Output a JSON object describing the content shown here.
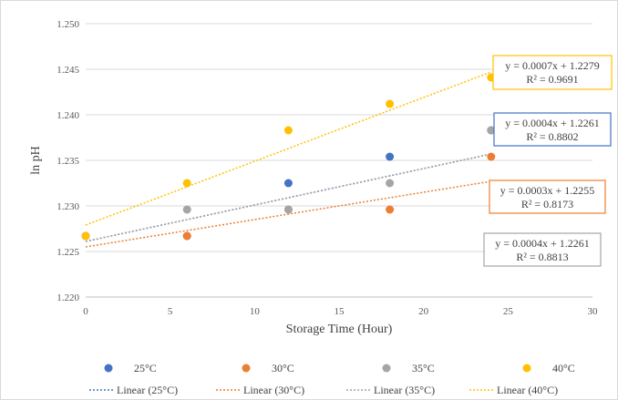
{
  "chart_data": {
    "type": "scatter",
    "xlabel": "Storage Time (Hour)",
    "ylabel": "ln pH",
    "xlim": [
      0,
      30
    ],
    "ylim": [
      1.22,
      1.25
    ],
    "x_ticks": [
      "0",
      "5",
      "10",
      "15",
      "20",
      "25",
      "30"
    ],
    "y_ticks": [
      "1.220",
      "1.225",
      "1.230",
      "1.235",
      "1.240",
      "1.245",
      "1.250"
    ],
    "grid": "horizontal",
    "legend_position": "bottom",
    "series": [
      {
        "name": "25°C",
        "color": "#4472C4",
        "points": [
          [
            0,
            1.2267
          ],
          [
            6,
            1.2267
          ],
          [
            12,
            1.2325
          ],
          [
            18,
            1.2354
          ],
          [
            24,
            1.2383
          ]
        ]
      },
      {
        "name": "30°C",
        "color": "#ED7D31",
        "points": [
          [
            0,
            1.2267
          ],
          [
            6,
            1.2267
          ],
          [
            12,
            1.2296
          ],
          [
            18,
            1.2296
          ],
          [
            24,
            1.2354
          ]
        ]
      },
      {
        "name": "35°C",
        "color": "#A5A5A5",
        "points": [
          [
            0,
            1.2267
          ],
          [
            6,
            1.2296
          ],
          [
            12,
            1.2296
          ],
          [
            18,
            1.2325
          ],
          [
            24,
            1.2383
          ]
        ]
      },
      {
        "name": "40°C",
        "color": "#FFC000",
        "points": [
          [
            0,
            1.2267
          ],
          [
            6,
            1.2325
          ],
          [
            12,
            1.2383
          ],
          [
            18,
            1.2412
          ],
          [
            24,
            1.2441
          ]
        ]
      }
    ],
    "trendlines": [
      {
        "name": "Linear (25°C)",
        "color": "#4472C4",
        "slope": 0.0004,
        "intercept": 1.2261,
        "equation": "y = 0.0004x + 1.2261",
        "r2": "R² = 0.8813"
      },
      {
        "name": "Linear (30°C)",
        "color": "#ED7D31",
        "slope": 0.0003,
        "intercept": 1.2255,
        "equation": "y = 0.0003x + 1.2255",
        "r2": "R² = 0.8173"
      },
      {
        "name": "Linear (35°C)",
        "color": "#A5A5A5",
        "slope": 0.0004,
        "intercept": 1.2261,
        "equation": "y = 0.0004x + 1.2261",
        "r2": "R² = 0.8802"
      },
      {
        "name": "Linear (40°C)",
        "color": "#FFC000",
        "slope": 0.0007,
        "intercept": 1.2279,
        "equation": "y = 0.0007x + 1.2279",
        "r2": "R² = 0.9691"
      }
    ],
    "equation_box_border_colors": [
      "#A5A5A5",
      "#ED7D31",
      "#4472C4",
      "#FFC000"
    ]
  }
}
